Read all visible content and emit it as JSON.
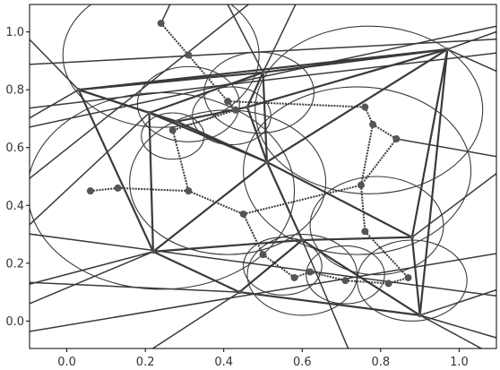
{
  "chart_data": {
    "type": "scatter",
    "title": "",
    "xlabel": "",
    "ylabel": "",
    "xlim": [
      -0.095,
      1.095
    ],
    "ylim": [
      -0.095,
      1.095
    ],
    "xticks": [
      0.0,
      0.2,
      0.4,
      0.6,
      0.8,
      1.0
    ],
    "yticks": [
      0.0,
      0.2,
      0.4,
      0.6,
      0.8,
      1.0
    ],
    "xtick_labels": [
      "0.0",
      "0.2",
      "0.4",
      "0.6",
      "0.8",
      "1.0"
    ],
    "ytick_labels": [
      "0.0",
      "0.2",
      "0.4",
      "0.6",
      "0.8",
      "1.0"
    ],
    "grid": false,
    "colors": {
      "line": "#3a3a3a",
      "edge": "#3a3a3a",
      "point": "#555555",
      "circle": "#3a3a3a",
      "axis": "#000000"
    },
    "site_points": {
      "x": [
        0.03,
        0.5,
        0.97,
        0.21,
        0.46,
        0.28,
        0.51,
        0.22,
        0.6,
        0.88,
        0.44,
        0.9
      ],
      "y": [
        0.8,
        0.86,
        0.94,
        0.72,
        0.74,
        0.69,
        0.55,
        0.24,
        0.28,
        0.29,
        0.1,
        0.02
      ]
    },
    "voronoi_vertices": {
      "x": [
        0.24,
        0.31,
        0.41,
        0.43,
        0.27,
        0.76,
        0.78,
        0.84,
        0.06,
        0.13,
        0.31,
        0.75,
        0.76,
        0.45,
        0.5,
        0.58,
        0.62,
        0.71,
        0.82,
        0.87
      ],
      "y": [
        1.03,
        0.92,
        0.76,
        0.73,
        0.66,
        0.74,
        0.68,
        0.63,
        0.45,
        0.46,
        0.45,
        0.47,
        0.31,
        0.37,
        0.23,
        0.15,
        0.17,
        0.14,
        0.13,
        0.15
      ]
    },
    "delaunay_edges": [
      [
        0,
        1
      ],
      [
        0,
        3
      ],
      [
        0,
        5
      ],
      [
        0,
        7
      ],
      [
        0,
        2
      ],
      [
        1,
        2
      ],
      [
        1,
        3
      ],
      [
        1,
        4
      ],
      [
        1,
        6
      ],
      [
        2,
        4
      ],
      [
        2,
        6
      ],
      [
        2,
        9
      ],
      [
        2,
        11
      ],
      [
        3,
        5
      ],
      [
        3,
        6
      ],
      [
        3,
        7
      ],
      [
        4,
        5
      ],
      [
        4,
        6
      ],
      [
        5,
        6
      ],
      [
        6,
        7
      ],
      [
        6,
        8
      ],
      [
        6,
        9
      ],
      [
        7,
        8
      ],
      [
        7,
        10
      ],
      [
        8,
        9
      ],
      [
        8,
        10
      ],
      [
        8,
        11
      ],
      [
        9,
        11
      ],
      [
        10,
        11
      ]
    ],
    "voronoi_edges": [
      [
        0,
        1
      ],
      [
        1,
        2
      ],
      [
        2,
        3
      ],
      [
        3,
        4
      ],
      [
        2,
        5
      ],
      [
        5,
        6
      ],
      [
        6,
        7
      ],
      [
        4,
        10
      ],
      [
        10,
        9
      ],
      [
        9,
        8
      ],
      [
        10,
        13
      ],
      [
        13,
        11
      ],
      [
        11,
        12
      ],
      [
        11,
        6
      ],
      [
        12,
        19
      ],
      [
        13,
        14
      ],
      [
        14,
        15
      ],
      [
        15,
        16
      ],
      [
        16,
        17
      ],
      [
        17,
        18
      ],
      [
        18,
        19
      ],
      [
        7,
        11
      ]
    ],
    "circumcircles": [
      {
        "cx": 0.24,
        "cy": 0.92,
        "r": 0.25
      },
      {
        "cx": 0.49,
        "cy": 0.79,
        "r": 0.14
      },
      {
        "cx": 0.31,
        "cy": 0.75,
        "r": 0.13
      },
      {
        "cx": 0.77,
        "cy": 0.73,
        "r": 0.29
      },
      {
        "cx": 0.74,
        "cy": 0.52,
        "r": 0.29
      },
      {
        "cx": 0.24,
        "cy": 0.45,
        "r": 0.34
      },
      {
        "cx": 0.41,
        "cy": 0.48,
        "r": 0.25
      },
      {
        "cx": 0.79,
        "cy": 0.33,
        "r": 0.17
      },
      {
        "cx": 0.55,
        "cy": 0.19,
        "r": 0.1
      },
      {
        "cx": 0.6,
        "cy": 0.16,
        "r": 0.14
      },
      {
        "cx": 0.88,
        "cy": 0.14,
        "r": 0.14
      },
      {
        "cx": 0.71,
        "cy": 0.16,
        "r": 0.1
      },
      {
        "cx": 0.27,
        "cy": 0.64,
        "r": 0.08
      },
      {
        "cx": 0.42,
        "cy": 0.71,
        "r": 0.1
      }
    ],
    "ray_lines": [
      [
        [
          -0.2,
          0.88
        ],
        [
          1.3,
          0.99
        ]
      ],
      [
        [
          -0.2,
          0.64
        ],
        [
          1.3,
          1.08
        ]
      ],
      [
        [
          -0.2,
          0.38
        ],
        [
          0.56,
          1.2
        ]
      ],
      [
        [
          -0.2,
          0.72
        ],
        [
          1.3,
          0.96
        ]
      ],
      [
        [
          0.03,
          0.8
        ],
        [
          -0.2,
          1.12
        ]
      ],
      [
        [
          0.03,
          0.8
        ],
        [
          -0.2,
          0.62
        ]
      ],
      [
        [
          0.97,
          0.94
        ],
        [
          1.3,
          1.1
        ]
      ],
      [
        [
          0.97,
          0.94
        ],
        [
          1.3,
          0.74
        ]
      ],
      [
        [
          0.9,
          0.02
        ],
        [
          1.3,
          0.2
        ]
      ],
      [
        [
          0.9,
          0.02
        ],
        [
          1.3,
          -0.14
        ]
      ],
      [
        [
          0.9,
          0.02
        ],
        [
          1.2,
          -0.2
        ]
      ],
      [
        [
          0.44,
          0.1
        ],
        [
          0.1,
          -0.2
        ]
      ],
      [
        [
          0.44,
          0.1
        ],
        [
          -0.2,
          0.14
        ]
      ],
      [
        [
          0.22,
          0.24
        ],
        [
          -0.2,
          0.09
        ]
      ],
      [
        [
          0.22,
          0.24
        ],
        [
          -0.2,
          0.0
        ]
      ],
      [
        [
          -0.2,
          -0.06
        ],
        [
          1.3,
          0.28
        ]
      ],
      [
        [
          -0.2,
          0.32
        ],
        [
          1.3,
          0.05
        ]
      ],
      [
        [
          0.24,
          1.03
        ],
        [
          0.3,
          1.2
        ]
      ],
      [
        [
          0.5,
          0.86
        ],
        [
          0.37,
          1.2
        ]
      ],
      [
        [
          0.5,
          0.86
        ],
        [
          0.62,
          1.2
        ]
      ],
      [
        [
          0.88,
          0.29
        ],
        [
          1.3,
          0.72
        ]
      ],
      [
        [
          0.6,
          0.28
        ],
        [
          0.75,
          -0.2
        ]
      ],
      [
        [
          0.84,
          0.63
        ],
        [
          1.3,
          0.52
        ]
      ],
      [
        [
          0.21,
          0.72
        ],
        [
          -0.2,
          0.2
        ]
      ]
    ]
  }
}
